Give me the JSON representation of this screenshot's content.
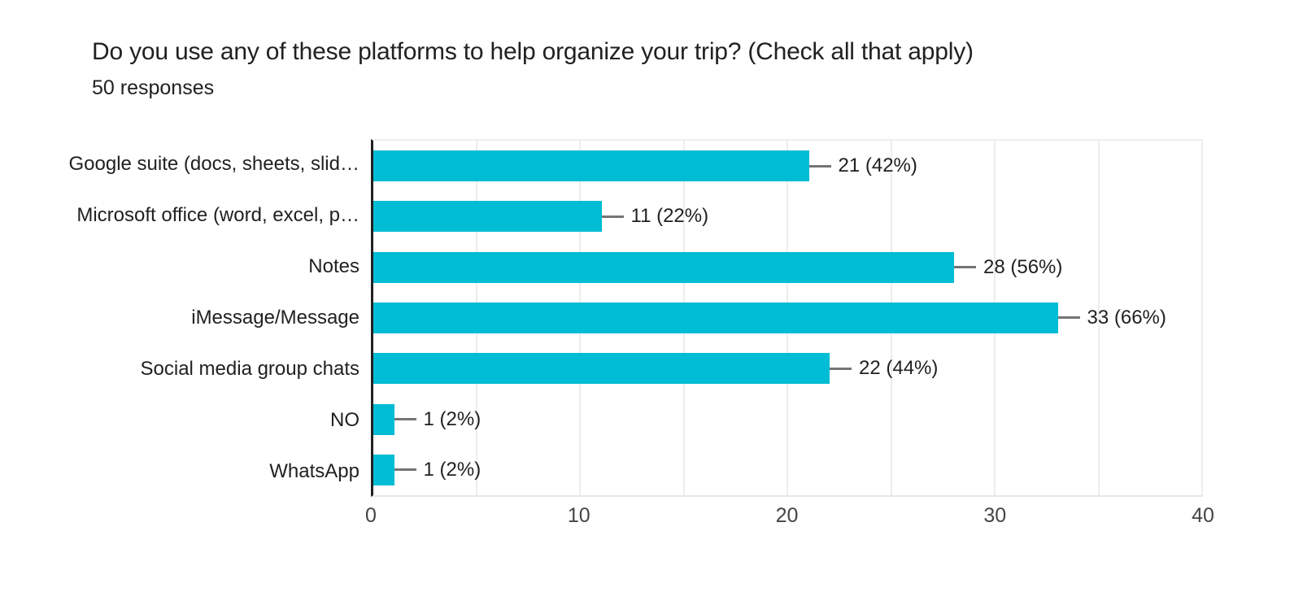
{
  "chart_data": {
    "type": "bar",
    "orientation": "horizontal",
    "title": "Do you use any of these platforms to help organize your trip? (Check all that apply)",
    "subtitle": "50 responses",
    "categories": [
      "Google suite (docs, sheets, slid…",
      "Microsoft office (word, excel, p…",
      "Notes",
      "iMessage/Message",
      "Social media group chats",
      "NO",
      "WhatsApp"
    ],
    "values": [
      21,
      11,
      28,
      33,
      22,
      1,
      1
    ],
    "value_labels": [
      "21 (42%)",
      "11 (22%)",
      "28 (56%)",
      "33 (66%)",
      "22 (44%)",
      "1 (2%)",
      "1 (2%)"
    ],
    "xlim": [
      0,
      40
    ],
    "xticks": [
      0,
      10,
      20,
      30,
      40
    ],
    "gridline_step": 5,
    "grid": true,
    "legend_position": "none",
    "colors": {
      "bar": "#00bcd4",
      "leader_line": "#757575",
      "gridline": "#ededed",
      "axis_line": "#212121",
      "text": "#212121",
      "tick_text": "#454545",
      "background": "#ffffff"
    }
  }
}
